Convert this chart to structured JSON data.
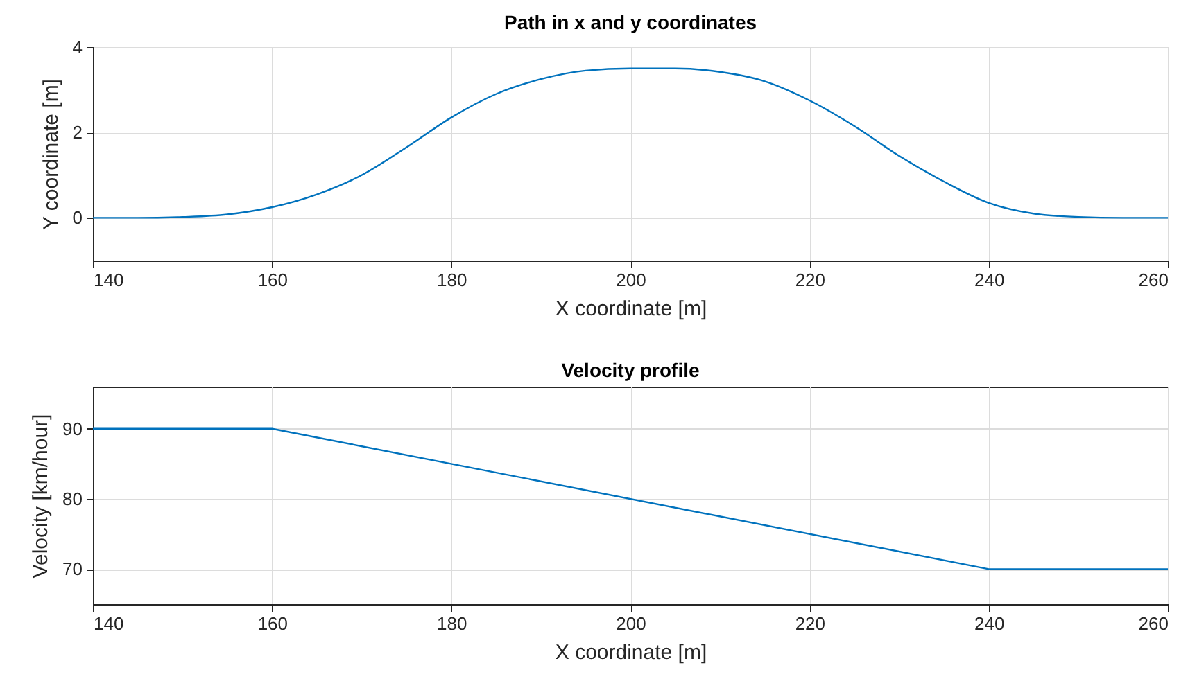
{
  "chart_data": [
    {
      "type": "line",
      "title": "Path in x and y coordinates",
      "xlabel": "X coordinate [m]",
      "ylabel": "Y coordinate [m]",
      "x": [
        140,
        145,
        150,
        155,
        160,
        165,
        170,
        175,
        180,
        185,
        190,
        195,
        200,
        205,
        210,
        215,
        220,
        225,
        230,
        235,
        240,
        245,
        250,
        255,
        260
      ],
      "series": [
        {
          "color": "#0072bd",
          "values": [
            0,
            0,
            0.02,
            0.08,
            0.25,
            0.55,
            1.0,
            1.65,
            2.35,
            2.9,
            3.25,
            3.45,
            3.5,
            3.5,
            3.42,
            3.2,
            2.75,
            2.15,
            1.45,
            0.85,
            0.35,
            0.1,
            0.02,
            0,
            0
          ]
        }
      ],
      "xlim": [
        140,
        260
      ],
      "xticks": [
        140,
        160,
        180,
        200,
        220,
        240,
        260
      ],
      "ylim": [
        -1,
        4
      ],
      "yticks": [
        0,
        2,
        4
      ],
      "grid": true
    },
    {
      "type": "line",
      "title": "Velocity profile",
      "xlabel": "X coordinate [m]",
      "ylabel": "Velocity [km/hour]",
      "x": [
        140,
        160,
        240,
        260
      ],
      "series": [
        {
          "color": "#0072bd",
          "values": [
            90,
            90,
            70,
            70
          ]
        }
      ],
      "xlim": [
        140,
        260
      ],
      "xticks": [
        140,
        160,
        180,
        200,
        220,
        240,
        260
      ],
      "ylim": [
        65,
        96
      ],
      "yticks": [
        70,
        80,
        90
      ],
      "grid": true
    }
  ]
}
